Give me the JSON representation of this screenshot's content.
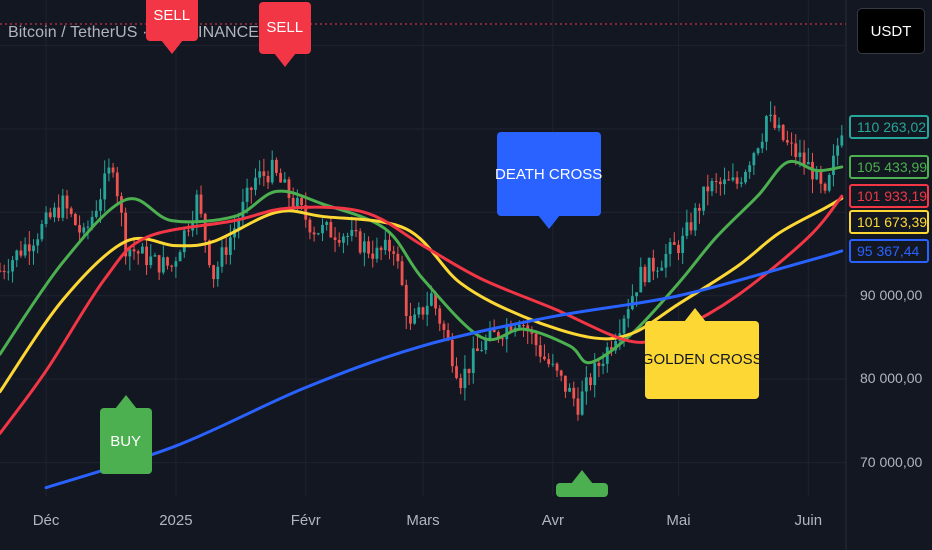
{
  "header": {
    "title": "Bitcoin / TetherUS · 1D · BINANCE",
    "currency_button": "USDT"
  },
  "colors": {
    "background": "#131722",
    "grid": "#1f2330",
    "candle_up": "#26a69a",
    "candle_down": "#ef5350",
    "green_ma": "#4caf50",
    "yellow_ma": "#fdd835",
    "red_ma": "#f23645",
    "blue_ma": "#2962ff"
  },
  "price_tags": [
    {
      "value": "110 263,02",
      "color": "#26a69a",
      "y": 110263
    },
    {
      "value": "105 433,99",
      "color": "#4caf50",
      "y": 105434
    },
    {
      "value": "101 933,19",
      "color": "#f23645",
      "y": 101933
    },
    {
      "value": "101 673,39",
      "color": "#fdd835",
      "y": 101673
    },
    {
      "value": "95 367,44",
      "color": "#2962ff",
      "y": 95367
    }
  ],
  "annotations": [
    {
      "kind": "sell",
      "label": "SELL",
      "date": "2024-12-31",
      "price": 120500
    },
    {
      "kind": "sell",
      "label": "SELL",
      "date": "2025-01-27",
      "price": 119000
    },
    {
      "kind": "death",
      "label": "DEATH CROSS",
      "date": "2025-03-31",
      "price": 99500
    },
    {
      "kind": "golden",
      "label": "GOLDEN CROSS",
      "date": "2025-05-05",
      "price": 87000
    },
    {
      "kind": "buy",
      "label": "BUY",
      "date": "2024-12-20",
      "price": 76500
    },
    {
      "kind": "buy",
      "label": "",
      "date": "2025-04-08",
      "price": 67500
    }
  ],
  "chart_data": {
    "type": "line",
    "title": "Bitcoin / TetherUS · 1D · BINANCE",
    "xlabel": "",
    "ylabel": "",
    "x_range": [
      "2024-11-20",
      "2025-06-10"
    ],
    "ylim": [
      66000,
      124000
    ],
    "x_ticks": [
      {
        "label": "Déc",
        "date": "2024-12-01"
      },
      {
        "label": "2025",
        "date": "2025-01-01"
      },
      {
        "label": "Févr",
        "date": "2025-02-01"
      },
      {
        "label": "Mars",
        "date": "2025-03-01"
      },
      {
        "label": "Avr",
        "date": "2025-04-01"
      },
      {
        "label": "Mai",
        "date": "2025-05-01"
      },
      {
        "label": "Juin",
        "date": "2025-06-01"
      }
    ],
    "y_ticks": [
      {
        "label": "90 000,00",
        "value": 90000
      },
      {
        "label": "80 000,00",
        "value": 80000
      },
      {
        "label": "70 000,00",
        "value": 70000
      }
    ],
    "grid": true,
    "price_series": {
      "name": "BTC/USDT",
      "points": [
        [
          "2024-11-20",
          93000
        ],
        [
          "2024-11-28",
          97000
        ],
        [
          "2024-12-05",
          101000
        ],
        [
          "2024-12-10",
          97000
        ],
        [
          "2024-12-17",
          106000
        ],
        [
          "2024-12-20",
          96000
        ],
        [
          "2024-12-27",
          94000
        ],
        [
          "2024-12-31",
          93500
        ],
        [
          "2025-01-06",
          101500
        ],
        [
          "2025-01-10",
          92500
        ],
        [
          "2025-01-14",
          97000
        ],
        [
          "2025-01-20",
          104000
        ],
        [
          "2025-01-24",
          105000
        ],
        [
          "2025-01-28",
          102000
        ],
        [
          "2025-02-03",
          98000
        ],
        [
          "2025-02-10",
          97500
        ],
        [
          "2025-02-18",
          95000
        ],
        [
          "2025-02-22",
          96000
        ],
        [
          "2025-02-26",
          86000
        ],
        [
          "2025-03-03",
          90000
        ],
        [
          "2025-03-10",
          80000
        ],
        [
          "2025-03-15",
          84000
        ],
        [
          "2025-03-24",
          87500
        ],
        [
          "2025-03-30",
          82500
        ],
        [
          "2025-04-07",
          77000
        ],
        [
          "2025-04-10",
          80000
        ],
        [
          "2025-04-15",
          84500
        ],
        [
          "2025-04-22",
          92500
        ],
        [
          "2025-04-26",
          94000
        ],
        [
          "2025-05-02",
          96500
        ],
        [
          "2025-05-08",
          103000
        ],
        [
          "2025-05-15",
          103500
        ],
        [
          "2025-05-21",
          109500
        ],
        [
          "2025-05-22",
          111500
        ],
        [
          "2025-05-27",
          108000
        ],
        [
          "2025-06-02",
          105000
        ],
        [
          "2025-06-05",
          101500
        ],
        [
          "2025-06-09",
          110263
        ]
      ]
    },
    "series": [
      {
        "name": "",
        "color": "#4caf50",
        "points": [
          [
            "2024-11-20",
            83000
          ],
          [
            "2024-12-05",
            94000
          ],
          [
            "2024-12-20",
            101500
          ],
          [
            "2024-12-31",
            99000
          ],
          [
            "2025-01-15",
            99500
          ],
          [
            "2025-01-25",
            102500
          ],
          [
            "2025-02-05",
            101000
          ],
          [
            "2025-02-20",
            98000
          ],
          [
            "2025-03-01",
            92000
          ],
          [
            "2025-03-15",
            85000
          ],
          [
            "2025-03-25",
            86000
          ],
          [
            "2025-04-05",
            84000
          ],
          [
            "2025-04-10",
            82000
          ],
          [
            "2025-04-20",
            85500
          ],
          [
            "2025-05-01",
            91500
          ],
          [
            "2025-05-10",
            97000
          ],
          [
            "2025-05-20",
            102000
          ],
          [
            "2025-05-27",
            106000
          ],
          [
            "2025-06-03",
            105000
          ],
          [
            "2025-06-09",
            105434
          ]
        ]
      },
      {
        "name": "",
        "color": "#fdd835",
        "points": [
          [
            "2024-11-20",
            78500
          ],
          [
            "2024-12-05",
            89500
          ],
          [
            "2024-12-20",
            96500
          ],
          [
            "2025-01-01",
            96000
          ],
          [
            "2025-01-10",
            96500
          ],
          [
            "2025-01-25",
            100000
          ],
          [
            "2025-02-05",
            99500
          ],
          [
            "2025-02-25",
            98000
          ],
          [
            "2025-03-10",
            91500
          ],
          [
            "2025-03-25",
            87500
          ],
          [
            "2025-04-10",
            85000
          ],
          [
            "2025-04-20",
            85500
          ],
          [
            "2025-05-01",
            89000
          ],
          [
            "2025-05-15",
            93500
          ],
          [
            "2025-05-25",
            97500
          ],
          [
            "2025-06-05",
            100500
          ],
          [
            "2025-06-09",
            101673
          ]
        ]
      },
      {
        "name": "",
        "color": "#f23645",
        "points": [
          [
            "2024-11-20",
            73500
          ],
          [
            "2024-12-01",
            81000
          ],
          [
            "2024-12-15",
            92000
          ],
          [
            "2024-12-25",
            97000
          ],
          [
            "2025-01-15",
            99000
          ],
          [
            "2025-01-28",
            100500
          ],
          [
            "2025-02-15",
            100000
          ],
          [
            "2025-03-01",
            96000
          ],
          [
            "2025-03-15",
            92000
          ],
          [
            "2025-04-01",
            88500
          ],
          [
            "2025-04-20",
            84500
          ],
          [
            "2025-05-01",
            86000
          ],
          [
            "2025-05-15",
            90000
          ],
          [
            "2025-06-01",
            97000
          ],
          [
            "2025-06-09",
            101933
          ]
        ]
      },
      {
        "name": "",
        "color": "#2962ff",
        "points": [
          [
            "2024-12-01",
            67000
          ],
          [
            "2025-01-01",
            72000
          ],
          [
            "2025-02-01",
            79000
          ],
          [
            "2025-03-01",
            84000
          ],
          [
            "2025-04-01",
            87500
          ],
          [
            "2025-05-01",
            90000
          ],
          [
            "2025-06-01",
            94200
          ],
          [
            "2025-06-09",
            95367
          ]
        ]
      }
    ]
  }
}
